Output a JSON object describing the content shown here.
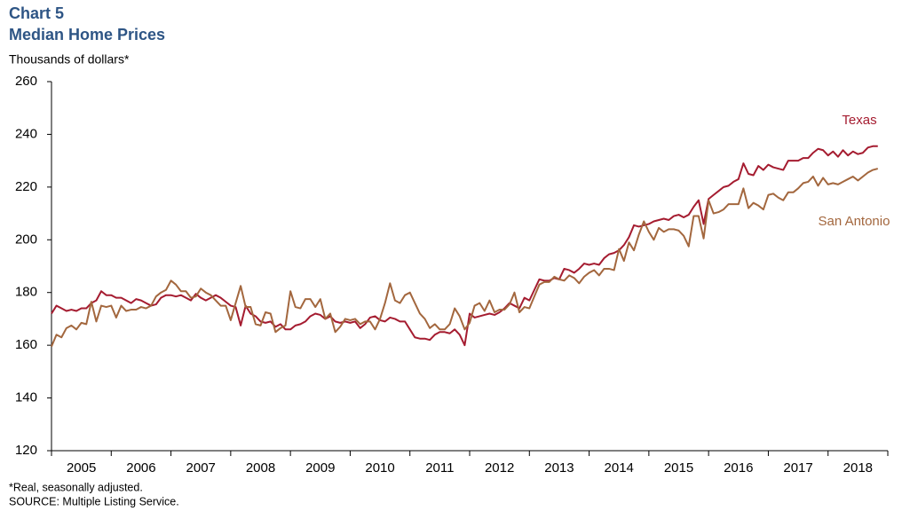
{
  "chart_data": {
    "type": "line",
    "title": "Chart 5",
    "subtitle": "Median Home Prices",
    "y_label": "Thousands  of dollars*",
    "notes": [
      "*Real, seasonally adjusted.",
      "SOURCE:  Multiple Listing Service."
    ],
    "xlim": [
      2005,
      2019
    ],
    "xticks": [
      {
        "value": 2005.5,
        "label": "2005"
      },
      {
        "value": 2006.5,
        "label": "2006"
      },
      {
        "value": 2007.5,
        "label": "2007"
      },
      {
        "value": 2008.5,
        "label": "2008"
      },
      {
        "value": 2009.5,
        "label": "2009"
      },
      {
        "value": 2010.5,
        "label": "2010"
      },
      {
        "value": 2011.5,
        "label": "2011"
      },
      {
        "value": 2012.5,
        "label": "2012"
      },
      {
        "value": 2013.5,
        "label": "2013"
      },
      {
        "value": 2014.5,
        "label": "2014"
      },
      {
        "value": 2015.5,
        "label": "2015"
      },
      {
        "value": 2016.5,
        "label": "2016"
      },
      {
        "value": 2017.5,
        "label": "2017"
      },
      {
        "value": 2018.5,
        "label": "2018"
      }
    ],
    "ylim": [
      120,
      260
    ],
    "yticks": [
      120,
      140,
      160,
      180,
      200,
      220,
      240,
      260
    ],
    "grid": false,
    "x": [
      2005,
      2005.083,
      2005.167,
      2005.25,
      2005.333,
      2005.417,
      2005.5,
      2005.583,
      2005.667,
      2005.75,
      2005.833,
      2005.917,
      2006,
      2006.083,
      2006.167,
      2006.25,
      2006.333,
      2006.417,
      2006.5,
      2006.583,
      2006.667,
      2006.75,
      2006.833,
      2006.917,
      2007,
      2007.083,
      2007.167,
      2007.25,
      2007.333,
      2007.417,
      2007.5,
      2007.583,
      2007.667,
      2007.75,
      2007.833,
      2007.917,
      2008,
      2008.083,
      2008.167,
      2008.25,
      2008.333,
      2008.417,
      2008.5,
      2008.583,
      2008.667,
      2008.75,
      2008.833,
      2008.917,
      2009,
      2009.083,
      2009.167,
      2009.25,
      2009.333,
      2009.417,
      2009.5,
      2009.583,
      2009.667,
      2009.75,
      2009.833,
      2009.917,
      2010,
      2010.083,
      2010.167,
      2010.25,
      2010.333,
      2010.417,
      2010.5,
      2010.583,
      2010.667,
      2010.75,
      2010.833,
      2010.917,
      2011,
      2011.083,
      2011.167,
      2011.25,
      2011.333,
      2011.417,
      2011.5,
      2011.583,
      2011.667,
      2011.75,
      2011.833,
      2011.917,
      2012,
      2012.083,
      2012.167,
      2012.25,
      2012.333,
      2012.417,
      2012.5,
      2012.583,
      2012.667,
      2012.75,
      2012.833,
      2012.917,
      2013,
      2013.083,
      2013.167,
      2013.25,
      2013.333,
      2013.417,
      2013.5,
      2013.583,
      2013.667,
      2013.75,
      2013.833,
      2013.917,
      2014,
      2014.083,
      2014.167,
      2014.25,
      2014.333,
      2014.417,
      2014.5,
      2014.583,
      2014.667,
      2014.75,
      2014.833,
      2014.917,
      2015,
      2015.083,
      2015.167,
      2015.25,
      2015.333,
      2015.417,
      2015.5,
      2015.583,
      2015.667,
      2015.75,
      2015.833,
      2015.917,
      2016,
      2016.083,
      2016.167,
      2016.25,
      2016.333,
      2016.417,
      2016.5,
      2016.583,
      2016.667,
      2016.75,
      2016.833,
      2016.917,
      2017,
      2017.083,
      2017.167,
      2017.25,
      2017.333,
      2017.417,
      2017.5,
      2017.583,
      2017.667,
      2017.75,
      2017.833,
      2017.917,
      2018,
      2018.083,
      2018.167,
      2018.25,
      2018.333,
      2018.417,
      2018.5,
      2018.583,
      2018.667,
      2018.75,
      2018.833
    ],
    "series": [
      {
        "name": "Texas",
        "color": "#a51c30",
        "values": [
          172,
          175,
          174,
          173,
          173.5,
          173,
          174,
          174,
          176,
          177,
          180.5,
          179,
          179,
          178,
          178,
          177,
          176,
          177.5,
          177,
          176,
          175,
          175.5,
          178,
          179,
          179,
          178.5,
          179,
          178,
          177,
          179.5,
          178,
          177,
          178,
          179,
          178,
          176.5,
          175,
          174.5,
          167.5,
          175,
          172,
          171,
          169,
          168.5,
          169,
          167,
          168,
          166,
          166,
          167.5,
          168,
          169,
          171,
          172,
          171.5,
          170,
          171,
          169,
          168.5,
          169,
          168.5,
          169,
          166.5,
          168,
          170.5,
          171,
          169.5,
          169,
          170.5,
          170,
          169,
          169,
          166,
          163,
          162.5,
          162.5,
          162,
          164,
          165,
          165,
          164.5,
          166,
          164,
          160,
          172,
          170.5,
          171,
          171.5,
          172,
          171.5,
          172.5,
          174,
          176,
          175,
          174,
          178,
          177,
          181,
          185,
          184.5,
          184.5,
          185.5,
          185,
          189,
          188.5,
          187.5,
          189,
          191,
          190.5,
          191,
          190.5,
          193,
          194.5,
          195,
          196,
          198,
          201,
          205.5,
          205,
          205.5,
          206,
          207,
          207.5,
          208,
          207.5,
          209,
          209.5,
          208.5,
          209.5,
          212.5,
          215,
          206,
          215.5,
          217,
          218.5,
          220,
          220.5,
          222,
          223,
          229,
          225,
          224.5,
          228,
          226.5,
          228.5,
          227.5,
          227,
          226.5,
          230,
          230,
          230,
          231,
          231,
          233,
          234.5,
          234,
          232,
          233.5,
          231.5,
          234,
          232,
          233.5,
          232.5,
          233,
          235,
          235.5,
          235.5
        ]
      },
      {
        "name": "San Antonio",
        "color": "#a3673e",
        "values": [
          159.5,
          164,
          163,
          166.5,
          167.5,
          166,
          168.5,
          168,
          176.5,
          169,
          175,
          174.5,
          175,
          170.5,
          175,
          173,
          173.5,
          173.5,
          174.5,
          174,
          175,
          178.5,
          180,
          181,
          184.5,
          183,
          180.5,
          180.5,
          178,
          178.5,
          181.5,
          180,
          179,
          177,
          175,
          175,
          169.5,
          176,
          182.5,
          174.5,
          174.5,
          168,
          167.5,
          172.5,
          172,
          165,
          166.5,
          167.5,
          180.5,
          174.5,
          174,
          177.5,
          177.5,
          174.5,
          177.5,
          170,
          172,
          165,
          167,
          170,
          169.5,
          170,
          168,
          169,
          169,
          166,
          170,
          176,
          183.5,
          177,
          176,
          179,
          180,
          176,
          172,
          170,
          166.5,
          168,
          166,
          166,
          168,
          174,
          171,
          166,
          168.5,
          175,
          176,
          173,
          177,
          172.5,
          173.5,
          173.5,
          175.5,
          180,
          172.5,
          174.5,
          174,
          178.5,
          183,
          184,
          184,
          186,
          185,
          184.5,
          186.5,
          185.5,
          183.5,
          186,
          187.5,
          188.5,
          186.5,
          189,
          189,
          188.5,
          196.5,
          192,
          199,
          196,
          202,
          207,
          203,
          200,
          204.5,
          203,
          204,
          204,
          203.5,
          201.5,
          197.5,
          209,
          209,
          200.5,
          215,
          210,
          210.5,
          211.5,
          213.5,
          213.5,
          213.5,
          219.5,
          212,
          214,
          213,
          211.5,
          217,
          217.5,
          216,
          215,
          218,
          218,
          219.5,
          221.5,
          222,
          224,
          220.5,
          223.5,
          221,
          221.5,
          221,
          222,
          223,
          224,
          222.5,
          224,
          225.5,
          226.5,
          227
        ]
      }
    ]
  }
}
